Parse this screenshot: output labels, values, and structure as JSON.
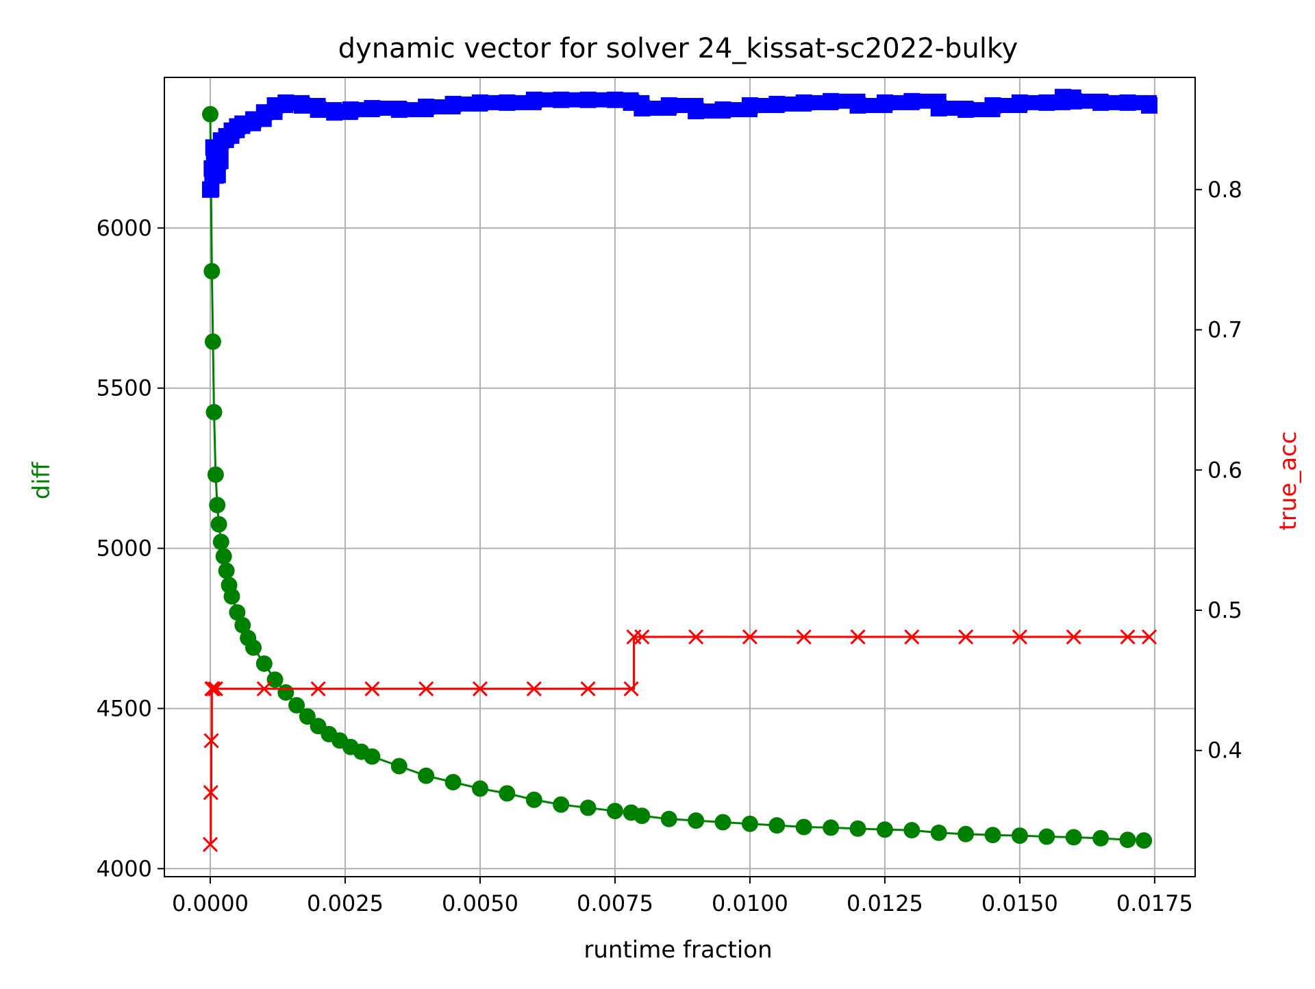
{
  "chart_data": {
    "type": "line",
    "title": "dynamic vector for solver 24_kissat-sc2022-bulky",
    "xlabel": "runtime fraction",
    "ylabel_left": "diff",
    "ylabel_right": "true_acc",
    "grid": true,
    "xlim": [
      -0.00085,
      0.01825
    ],
    "ylim_left": [
      3975,
      6470
    ],
    "ylim_right": [
      0.31,
      0.88
    ],
    "x_ticks": [
      0.0,
      0.0025,
      0.005,
      0.0075,
      0.01,
      0.0125,
      0.015,
      0.0175
    ],
    "x_tick_labels": [
      "0.0000",
      "0.0025",
      "0.0050",
      "0.0075",
      "0.0100",
      "0.0125",
      "0.0150",
      "0.0175"
    ],
    "y_left_ticks": [
      4000,
      4500,
      5000,
      5500,
      6000
    ],
    "y_left_tick_labels": [
      "4000",
      "4500",
      "5000",
      "5500",
      "6000"
    ],
    "y_right_ticks": [
      0.4,
      0.5,
      0.6,
      0.7,
      0.8
    ],
    "y_right_tick_labels": [
      "0.4",
      "0.5",
      "0.6",
      "0.7",
      "0.8"
    ],
    "colors": {
      "diff": "#008000",
      "true_acc": "#ff0000",
      "blue_series": "#0000ff",
      "grid": "#b0b0b0",
      "axis": "#000000"
    },
    "series": [
      {
        "axis": "left",
        "color": "#008000",
        "marker": "circle",
        "step": false,
        "x": [
          0.0,
          3e-05,
          5e-05,
          7e-05,
          0.0001,
          0.00013,
          0.00016,
          0.0002,
          0.00025,
          0.0003,
          0.00035,
          0.0004,
          0.0005,
          0.0006,
          0.0007,
          0.0008,
          0.001,
          0.0012,
          0.0014,
          0.0016,
          0.0018,
          0.002,
          0.0022,
          0.0024,
          0.0026,
          0.0028,
          0.003,
          0.0035,
          0.004,
          0.0045,
          0.005,
          0.0055,
          0.006,
          0.0065,
          0.007,
          0.0075,
          0.0078,
          0.008,
          0.0085,
          0.009,
          0.0095,
          0.01,
          0.0105,
          0.011,
          0.0115,
          0.012,
          0.0125,
          0.013,
          0.0135,
          0.014,
          0.0145,
          0.015,
          0.0155,
          0.016,
          0.0165,
          0.017,
          0.0173
        ],
        "y": [
          6355,
          5865,
          5645,
          5425,
          5230,
          5135,
          5075,
          5020,
          4975,
          4930,
          4885,
          4850,
          4800,
          4760,
          4720,
          4690,
          4640,
          4590,
          4550,
          4510,
          4475,
          4445,
          4420,
          4400,
          4380,
          4365,
          4350,
          4320,
          4290,
          4270,
          4250,
          4235,
          4215,
          4200,
          4190,
          4180,
          4175,
          4165,
          4155,
          4150,
          4145,
          4140,
          4135,
          4130,
          4128,
          4125,
          4122,
          4120,
          4112,
          4108,
          4105,
          4103,
          4100,
          4098,
          4095,
          4090,
          4088
        ]
      },
      {
        "axis": "right",
        "color": "#ff0000",
        "marker": "x",
        "step": true,
        "x": [
          0.0,
          1e-05,
          2e-05,
          3e-05,
          5e-05,
          0.0001,
          0.001,
          0.002,
          0.003,
          0.004,
          0.005,
          0.006,
          0.007,
          0.0078,
          0.00785,
          0.008,
          0.009,
          0.01,
          0.011,
          0.012,
          0.013,
          0.014,
          0.015,
          0.016,
          0.017,
          0.0174
        ],
        "y": [
          0.333,
          0.37,
          0.407,
          0.444,
          0.444,
          0.444,
          0.444,
          0.444,
          0.444,
          0.444,
          0.444,
          0.444,
          0.444,
          0.444,
          0.481,
          0.481,
          0.481,
          0.481,
          0.481,
          0.481,
          0.481,
          0.481,
          0.481,
          0.481,
          0.481,
          0.481
        ]
      },
      {
        "axis": "right",
        "color": "#0000ff",
        "marker": "square",
        "step": true,
        "x": [
          0.0,
          3e-05,
          6e-05,
          0.0001,
          0.00015,
          0.0002,
          0.0003,
          0.0004,
          0.0005,
          0.0006,
          0.0008,
          0.001,
          0.0012,
          0.0014,
          0.0017,
          0.002,
          0.0023,
          0.0026,
          0.003,
          0.0035,
          0.004,
          0.0045,
          0.005,
          0.0055,
          0.006,
          0.0065,
          0.007,
          0.0075,
          0.0078,
          0.008,
          0.0085,
          0.009,
          0.0095,
          0.01,
          0.0105,
          0.011,
          0.0115,
          0.012,
          0.0125,
          0.013,
          0.0135,
          0.014,
          0.0145,
          0.015,
          0.0155,
          0.0158,
          0.016,
          0.0165,
          0.017,
          0.0174
        ],
        "y": [
          0.8,
          0.815,
          0.83,
          0.81,
          0.82,
          0.835,
          0.838,
          0.842,
          0.845,
          0.847,
          0.85,
          0.855,
          0.86,
          0.862,
          0.86,
          0.857,
          0.855,
          0.857,
          0.858,
          0.857,
          0.859,
          0.861,
          0.862,
          0.862,
          0.864,
          0.864,
          0.864,
          0.864,
          0.862,
          0.858,
          0.86,
          0.856,
          0.857,
          0.86,
          0.861,
          0.862,
          0.863,
          0.86,
          0.862,
          0.863,
          0.858,
          0.857,
          0.86,
          0.862,
          0.862,
          0.866,
          0.863,
          0.862,
          0.862,
          0.86
        ]
      }
    ]
  }
}
